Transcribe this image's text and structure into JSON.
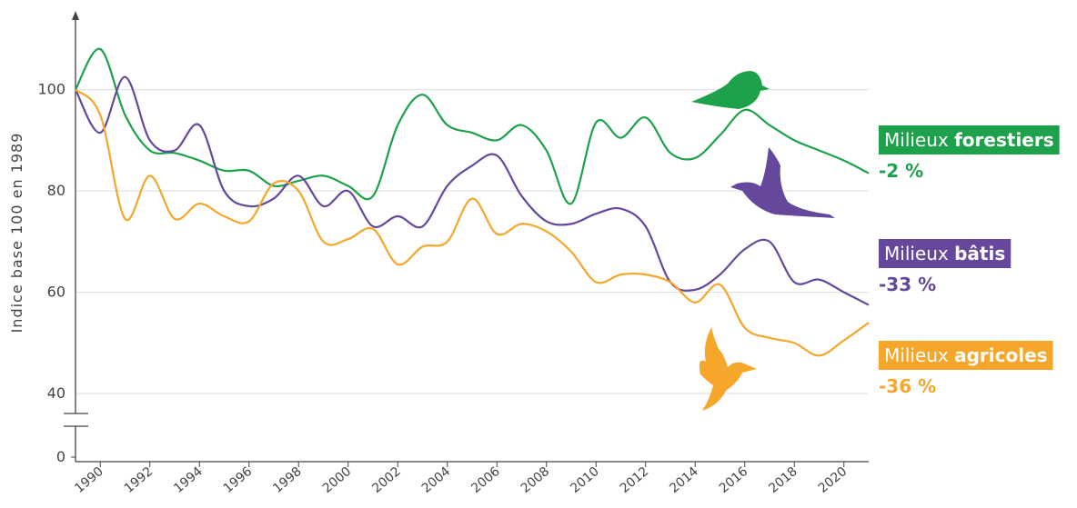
{
  "chart_data": {
    "type": "line",
    "y_axis_label": "Indice base 100 en 1989",
    "x": [
      1989,
      1990,
      1991,
      1992,
      1993,
      1994,
      1995,
      1996,
      1997,
      1998,
      1999,
      2000,
      2001,
      2002,
      2003,
      2004,
      2005,
      2006,
      2007,
      2008,
      2009,
      2010,
      2011,
      2012,
      2013,
      2014,
      2015,
      2016,
      2017,
      2018,
      2019,
      2020,
      2021
    ],
    "xlim": [
      1989,
      2021
    ],
    "xticks": [
      1990,
      1992,
      1994,
      1996,
      1998,
      2000,
      2002,
      2004,
      2006,
      2008,
      2010,
      2012,
      2014,
      2016,
      2018,
      2020
    ],
    "ylim": [
      0,
      115
    ],
    "yticks": [
      0,
      40,
      60,
      80,
      100
    ],
    "y_break": 35,
    "grid": true,
    "series": [
      {
        "name": "Milieux forestiers",
        "color": "#1ea14b",
        "change": -2,
        "change_label": "-2 %",
        "values": [
          100,
          108,
          95,
          88,
          87.5,
          86,
          84,
          84,
          81,
          82,
          83,
          81,
          79,
          93,
          99,
          93,
          91.5,
          90,
          93,
          88,
          77.5,
          93.5,
          90.5,
          94.5,
          87.5,
          86.5,
          91,
          96,
          93,
          90,
          88,
          86,
          83.5
        ]
      },
      {
        "name": "Milieux bâtis",
        "color": "#65489c",
        "change": -33,
        "change_label": "-33 %",
        "values": [
          100,
          91.5,
          102.5,
          90,
          88,
          93,
          80,
          77,
          78.5,
          83,
          77,
          80,
          73,
          75,
          73,
          81,
          85,
          87,
          79,
          74,
          73.5,
          75.5,
          76.5,
          73,
          62,
          60.5,
          63.5,
          68.5,
          70,
          62,
          62.5,
          60,
          57.5
        ]
      },
      {
        "name": "Milieux agricoles",
        "color": "#f5a62b",
        "change": -36,
        "change_label": "-36 %",
        "values": [
          100,
          95,
          74.5,
          83,
          74.5,
          77.5,
          75,
          74,
          81.5,
          80,
          70,
          70.5,
          72.5,
          65.5,
          69,
          70,
          78.5,
          71.5,
          73.5,
          72,
          68,
          62,
          63.5,
          63.5,
          62,
          58,
          61.5,
          53,
          51,
          50,
          47.5,
          50.5,
          54
        ]
      }
    ]
  }
}
